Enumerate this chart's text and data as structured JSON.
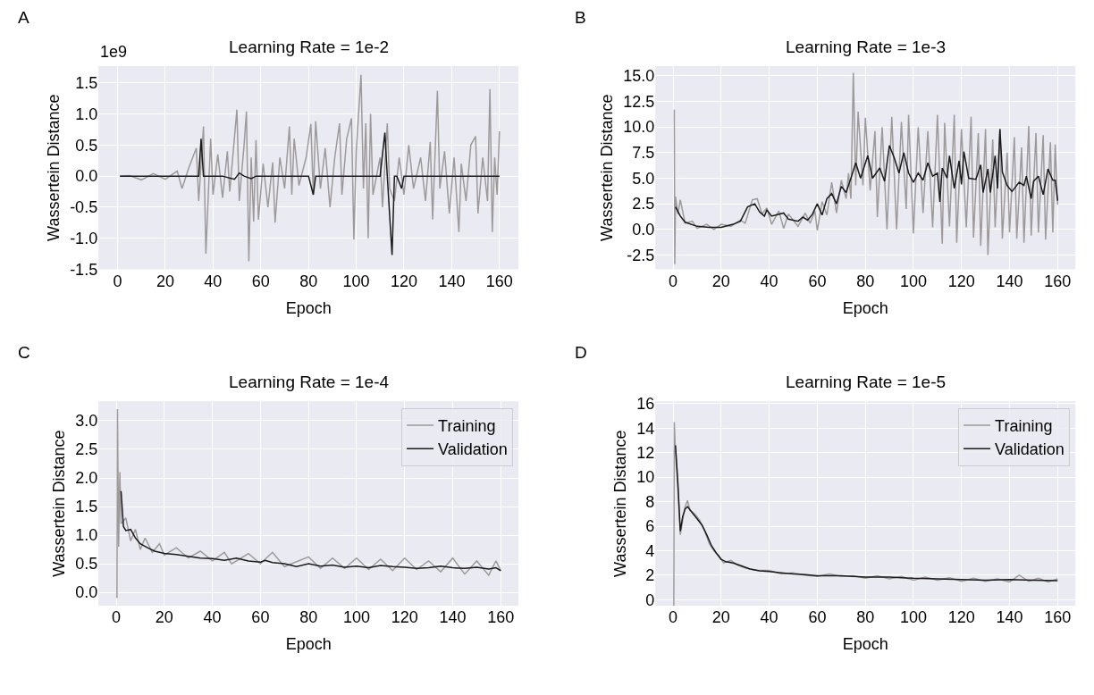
{
  "chart_data": [
    {
      "type": "line",
      "title": "Learning Rate = 1e-2",
      "xlabel": "Epoch",
      "ylabel": "Wassertein Distance",
      "annotations": [
        "A",
        "1e9"
      ],
      "grid": true,
      "legend": false,
      "xlim": [
        -8,
        168
      ],
      "ylim": [
        -1.5,
        1.77
      ],
      "xticks": [
        0,
        20,
        40,
        60,
        80,
        100,
        120,
        140,
        160
      ],
      "yticks": [
        -1.5,
        {
          "value": -1,
          "label": "-1.0"
        },
        -0.5,
        {
          "value": 0,
          "label": "0.0"
        },
        0.5,
        {
          "value": 1,
          "label": "1.0"
        },
        1.5
      ],
      "series": [
        {
          "color": "#9e9a9a",
          "x": [
            1,
            5,
            10,
            15,
            20,
            25,
            27,
            30,
            33,
            34,
            36,
            37,
            39,
            40,
            42,
            44,
            46,
            47,
            50,
            51,
            53,
            54,
            55,
            56,
            57,
            58,
            59,
            61,
            63,
            65,
            66,
            68,
            70,
            72,
            73,
            74,
            76,
            79,
            81,
            82,
            83,
            85,
            87,
            89,
            91,
            93,
            94,
            96,
            98,
            99,
            100,
            102,
            103,
            104,
            105,
            106,
            107,
            110,
            111,
            113,
            114,
            116,
            118,
            120,
            122,
            124,
            127,
            129,
            131,
            132,
            134,
            135,
            137,
            139,
            141,
            143,
            144,
            146,
            148,
            150,
            151,
            153,
            155,
            156,
            157,
            158,
            159,
            160
          ],
          "values": [
            0,
            0.01,
            -0.06,
            0.04,
            -0.05,
            0.08,
            -0.2,
            0.15,
            0.45,
            -0.4,
            0.8,
            -1.25,
            0.6,
            -0.3,
            0.35,
            -0.35,
            0.4,
            -0.25,
            1.07,
            -0.4,
            0.5,
            1.04,
            -1.37,
            0.3,
            -0.73,
            0.58,
            -0.7,
            0.2,
            -0.5,
            0.22,
            -0.75,
            0.3,
            -0.2,
            0.8,
            -0.3,
            0.6,
            -0.15,
            0.3,
            0.84,
            -0.3,
            0.88,
            -0.2,
            0.45,
            -0.5,
            0.3,
            0.85,
            -0.3,
            0.6,
            0.93,
            -1.02,
            0.4,
            1.63,
            -0.2,
            0.85,
            -1.0,
            1.0,
            -0.3,
            0.3,
            -0.5,
            0.85,
            -0.2,
            -0.4,
            0.3,
            -0.3,
            0.5,
            -0.2,
            0.3,
            -0.4,
            0.55,
            -0.7,
            1.37,
            -0.2,
            0.4,
            -0.6,
            0.3,
            -0.9,
            0.2,
            -0.4,
            0.5,
            0.64,
            -0.6,
            0.3,
            -0.4,
            1.4,
            -0.9,
            0.3,
            -0.3,
            0.72
          ]
        },
        {
          "color": "#1a1a1a",
          "x": [
            1,
            10,
            20,
            30,
            34,
            35,
            36,
            44,
            49,
            51,
            53,
            56,
            58,
            80,
            82,
            83,
            110,
            112,
            113,
            115,
            116,
            117,
            119,
            120,
            140,
            160
          ],
          "values": [
            0,
            0,
            0,
            0,
            0,
            0.6,
            0,
            0,
            -0.05,
            0.05,
            0,
            -0.04,
            0,
            0,
            -0.3,
            0,
            0,
            0.7,
            0,
            -1.27,
            0,
            0,
            -0.2,
            0,
            0,
            0
          ]
        }
      ]
    },
    {
      "type": "line",
      "title": "Learning Rate = 1e-3",
      "xlabel": "Epoch",
      "ylabel": "Wassertein Distance",
      "annotations": [
        "B"
      ],
      "grid": true,
      "legend": false,
      "xlim": [
        -7.4,
        167.4
      ],
      "ylim": [
        -3.9,
        15.95
      ],
      "xticks": [
        0,
        20,
        40,
        60,
        80,
        100,
        120,
        140,
        160
      ],
      "yticks": [
        -2.5,
        {
          "value": 0,
          "label": "0.0"
        },
        2.5,
        {
          "value": 5,
          "label": "5.0"
        },
        7.5,
        {
          "value": 10,
          "label": "10.0"
        },
        12.5,
        {
          "value": 15,
          "label": "15.0"
        }
      ],
      "series": [
        {
          "color": "#9e9a9a",
          "x": [
            0.5,
            0.7,
            1,
            2,
            3,
            5,
            8,
            10,
            14,
            17,
            20,
            24,
            28,
            30,
            33,
            35,
            37,
            39,
            41,
            44,
            46,
            48,
            52,
            55,
            57,
            59,
            60,
            62,
            64,
            66,
            68,
            70,
            72,
            73,
            74,
            75,
            76,
            77,
            79,
            80,
            82,
            84,
            85,
            87,
            89,
            91,
            93,
            95,
            97,
            98,
            100,
            102,
            104,
            106,
            108,
            110,
            112,
            113,
            115,
            117,
            118,
            120,
            122,
            124,
            125,
            127,
            128,
            130,
            131,
            133,
            134,
            136,
            137,
            139,
            140,
            142,
            143,
            145,
            146,
            148,
            149,
            151,
            152,
            154,
            155,
            157,
            158,
            159,
            160
          ],
          "values": [
            11.7,
            -3.4,
            3.2,
            1.5,
            2.9,
            0.6,
            0.8,
            0.1,
            0.5,
            0.0,
            0.5,
            0.3,
            0.9,
            0.6,
            2.9,
            3.0,
            1.5,
            2.1,
            0.5,
            1.8,
            0.1,
            1.5,
            0.3,
            1.6,
            0.6,
            1.8,
            -0.1,
            2.7,
            1.4,
            4.6,
            1.6,
            4.8,
            3.0,
            5.5,
            3.0,
            15.3,
            4.3,
            11.5,
            4.3,
            10.9,
            3.8,
            9.6,
            1.2,
            10.0,
            0.0,
            11.0,
            0.0,
            10.5,
            2.0,
            11.2,
            -0.4,
            10.0,
            1.6,
            9.6,
            0.2,
            11.2,
            -1.4,
            10.4,
            0.3,
            11.2,
            -1.3,
            9.8,
            0.2,
            11.0,
            -0.8,
            9.4,
            -1.6,
            9.8,
            -2.5,
            8.8,
            0.2,
            9.8,
            -0.9,
            7.5,
            -0.3,
            9.0,
            -0.9,
            8.0,
            -1.3,
            10.1,
            -0.6,
            9.4,
            -0.3,
            9.2,
            -1.0,
            8.5,
            -0.3,
            8.3,
            2.4
          ]
        },
        {
          "color": "#1a1a1a",
          "x": [
            1,
            3,
            5,
            10,
            15,
            20,
            25,
            28,
            31,
            34,
            36,
            38,
            39,
            41,
            46,
            48,
            52,
            54,
            56,
            58,
            60,
            62,
            64,
            66,
            68,
            70,
            72,
            74,
            76,
            78,
            81,
            83,
            86,
            88,
            90,
            92,
            94,
            96,
            98,
            100,
            102,
            104,
            106,
            108,
            110,
            111,
            112,
            114,
            115,
            117,
            119,
            120,
            121,
            123,
            126,
            128,
            129,
            131,
            132,
            134,
            135,
            136,
            137,
            139,
            141,
            144,
            146,
            147,
            149,
            150,
            152,
            154,
            156,
            158,
            159,
            160
          ],
          "values": [
            2.2,
            1.3,
            0.7,
            0.3,
            0.2,
            0.2,
            0.5,
            0.8,
            2.2,
            2.5,
            1.7,
            1.3,
            1.9,
            1.3,
            1.6,
            1.0,
            0.8,
            1.2,
            0.9,
            1.5,
            2.5,
            1.4,
            3.0,
            3.5,
            2.5,
            4.2,
            3.6,
            5.0,
            6.5,
            5.0,
            7.2,
            5.0,
            6.0,
            4.7,
            8.2,
            7.0,
            5.5,
            7.5,
            5.5,
            4.6,
            5.5,
            4.8,
            6.5,
            5.2,
            5.5,
            2.7,
            6.0,
            5.0,
            7.2,
            4.0,
            6.7,
            4.4,
            7.6,
            5.0,
            4.9,
            6.3,
            3.6,
            5.9,
            3.6,
            7.2,
            4.0,
            9.8,
            5.6,
            4.3,
            3.7,
            4.6,
            4.3,
            5.2,
            3.0,
            4.7,
            5.2,
            3.4,
            5.9,
            4.8,
            4.8,
            2.8
          ]
        }
      ]
    },
    {
      "type": "line",
      "title": "Learning Rate = 1e-4",
      "xlabel": "Epoch",
      "ylabel": "Wassertein Distance",
      "annotations": [
        "C"
      ],
      "grid": true,
      "legend": "top right",
      "xlim": [
        -7.4,
        167.4
      ],
      "ylim": [
        -0.235,
        3.34
      ],
      "xticks": [
        0,
        20,
        40,
        60,
        80,
        100,
        120,
        140,
        160
      ],
      "yticks": [
        {
          "value": 0,
          "label": "0.0"
        },
        0.5,
        {
          "value": 1,
          "label": "1.0"
        },
        1.5,
        {
          "value": 2,
          "label": "2.0"
        },
        2.5,
        {
          "value": 3,
          "label": "3.0"
        }
      ],
      "series": [
        {
          "name": "Training",
          "color": "#9e9a9a",
          "x": [
            0.3,
            0.5,
            1,
            1.5,
            2,
            4,
            6,
            8,
            10,
            12,
            15,
            18,
            20,
            25,
            30,
            35,
            40,
            45,
            48,
            55,
            60,
            65,
            70,
            80,
            85,
            90,
            95,
            100,
            105,
            110,
            115,
            120,
            125,
            130,
            135,
            140,
            145,
            150,
            155,
            158,
            160
          ],
          "values": [
            -0.1,
            3.2,
            0.8,
            2.1,
            1.2,
            1.3,
            0.9,
            1.1,
            0.75,
            0.95,
            0.7,
            0.85,
            0.65,
            0.78,
            0.6,
            0.72,
            0.55,
            0.7,
            0.5,
            0.68,
            0.5,
            0.7,
            0.45,
            0.62,
            0.42,
            0.6,
            0.42,
            0.6,
            0.4,
            0.58,
            0.38,
            0.6,
            0.4,
            0.55,
            0.36,
            0.6,
            0.32,
            0.55,
            0.3,
            0.55,
            0.38
          ]
        },
        {
          "name": "Validation",
          "color": "#1a1a1a",
          "x": [
            2,
            3,
            4,
            6,
            8,
            10,
            13,
            16,
            20,
            25,
            30,
            35,
            40,
            45,
            50,
            55,
            60,
            62,
            65,
            70,
            75,
            80,
            85,
            90,
            95,
            100,
            105,
            110,
            115,
            120,
            125,
            130,
            135,
            140,
            145,
            150,
            155,
            158,
            160
          ],
          "values": [
            1.77,
            1.15,
            1.08,
            1.1,
            0.95,
            0.85,
            0.78,
            0.72,
            0.68,
            0.66,
            0.63,
            0.6,
            0.59,
            0.56,
            0.6,
            0.55,
            0.53,
            0.56,
            0.52,
            0.5,
            0.45,
            0.5,
            0.46,
            0.48,
            0.44,
            0.46,
            0.43,
            0.47,
            0.45,
            0.44,
            0.42,
            0.43,
            0.46,
            0.43,
            0.42,
            0.44,
            0.41,
            0.43,
            0.38
          ]
        }
      ]
    },
    {
      "type": "line",
      "title": "Learning Rate = 1e-5",
      "xlabel": "Epoch",
      "ylabel": "Wassertein Distance",
      "annotations": [
        "D"
      ],
      "grid": true,
      "legend": "top right",
      "xlim": [
        -7.4,
        167.4
      ],
      "ylim": [
        -0.5,
        16.2
      ],
      "xticks": [
        0,
        20,
        40,
        60,
        80,
        100,
        120,
        140,
        160
      ],
      "yticks": [
        0,
        2,
        4,
        6,
        8,
        10,
        12,
        14,
        16
      ],
      "series": [
        {
          "name": "Training",
          "color": "#9e9a9a",
          "x": [
            0.3,
            0.5,
            1,
            2,
            3,
            4,
            5,
            6,
            7,
            9,
            11,
            13,
            15,
            17,
            19,
            21,
            24,
            27,
            30,
            35,
            40,
            45,
            50,
            55,
            60,
            65,
            70,
            75,
            80,
            85,
            90,
            95,
            100,
            105,
            110,
            115,
            120,
            125,
            130,
            135,
            140,
            144,
            148,
            152,
            156,
            160
          ],
          "values": [
            -0.5,
            14.5,
            12,
            9,
            5.3,
            6.5,
            7.6,
            8.1,
            7.3,
            7.0,
            6.5,
            5.7,
            4.6,
            4.0,
            3.6,
            3.0,
            3.2,
            2.8,
            2.6,
            2.4,
            2.4,
            2.1,
            2.2,
            2.0,
            1.9,
            2.1,
            1.9,
            1.95,
            1.75,
            1.95,
            1.7,
            1.9,
            1.6,
            1.85,
            1.6,
            1.8,
            1.5,
            1.75,
            1.5,
            1.7,
            1.45,
            2.0,
            1.5,
            1.75,
            1.45,
            1.7
          ]
        },
        {
          "name": "Validation",
          "color": "#1a1a1a",
          "x": [
            1,
            2,
            3,
            4,
            5,
            6,
            8,
            10,
            12,
            14,
            16,
            18,
            20,
            22,
            25,
            28,
            32,
            36,
            40,
            45,
            50,
            55,
            60,
            70,
            80,
            90,
            100,
            110,
            120,
            130,
            140,
            150,
            160
          ],
          "values": [
            12.6,
            9.5,
            5.6,
            6.8,
            7.4,
            7.6,
            7.1,
            6.6,
            6.1,
            5.3,
            4.4,
            3.8,
            3.3,
            3.1,
            3.0,
            2.8,
            2.5,
            2.35,
            2.3,
            2.2,
            2.1,
            2.05,
            1.95,
            1.95,
            1.85,
            1.85,
            1.75,
            1.7,
            1.65,
            1.6,
            1.65,
            1.6,
            1.55
          ]
        }
      ]
    }
  ]
}
